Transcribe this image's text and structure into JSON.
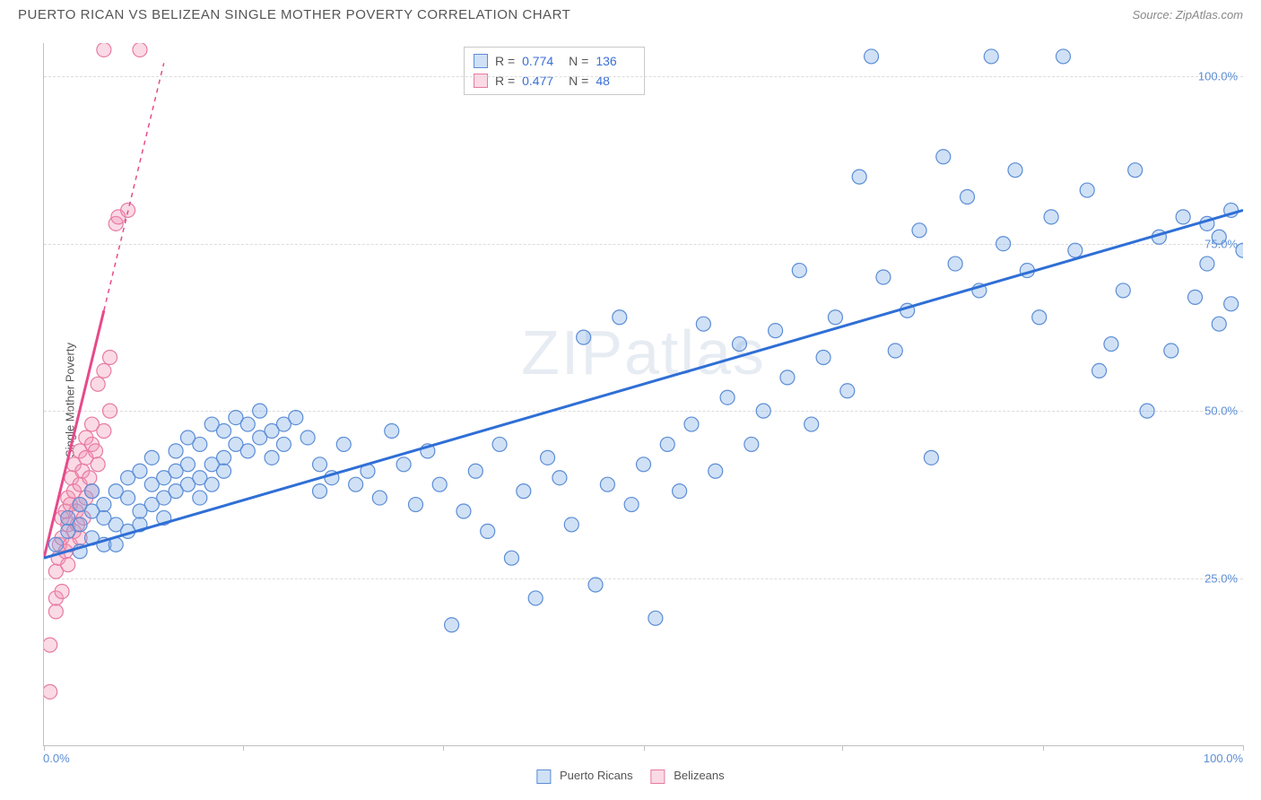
{
  "header": {
    "title": "PUERTO RICAN VS BELIZEAN SINGLE MOTHER POVERTY CORRELATION CHART",
    "source": "Source: ZipAtlas.com"
  },
  "chart": {
    "type": "scatter",
    "ylabel": "Single Mother Poverty",
    "watermark": "ZIPatlas",
    "xlim": [
      0,
      100
    ],
    "ylim": [
      0,
      105
    ],
    "yticks": [
      25,
      50,
      75,
      100
    ],
    "ytick_labels": [
      "25.0%",
      "50.0%",
      "75.0%",
      "100.0%"
    ],
    "xtick_positions": [
      0,
      16.6,
      33.3,
      50,
      66.6,
      83.3,
      100
    ],
    "xaxis_left_label": "0.0%",
    "xaxis_right_label": "100.0%",
    "background_color": "#ffffff",
    "grid_color": "#dcdcdc",
    "marker_radius": 8,
    "marker_stroke_width": 1.2,
    "series": {
      "puerto_ricans": {
        "label": "Puerto Ricans",
        "fill": "rgba(120,170,230,0.35)",
        "stroke": "#5b8dd6",
        "R": "0.774",
        "N": "136",
        "trend": {
          "x1": 0,
          "y1": 28,
          "x2": 100,
          "y2": 80,
          "dash_after_x": 100,
          "dash_end_x": 100,
          "dash_end_y": 80,
          "color": "#2f6fd6",
          "width": 3
        },
        "points": [
          [
            1,
            30
          ],
          [
            2,
            32
          ],
          [
            2,
            34
          ],
          [
            3,
            29
          ],
          [
            3,
            33
          ],
          [
            3,
            36
          ],
          [
            4,
            31
          ],
          [
            4,
            35
          ],
          [
            4,
            38
          ],
          [
            5,
            30
          ],
          [
            5,
            36
          ],
          [
            5,
            34
          ],
          [
            6,
            33
          ],
          [
            6,
            30
          ],
          [
            6,
            38
          ],
          [
            7,
            32
          ],
          [
            7,
            40
          ],
          [
            7,
            37
          ],
          [
            8,
            35
          ],
          [
            8,
            33
          ],
          [
            8,
            41
          ],
          [
            9,
            36
          ],
          [
            9,
            39
          ],
          [
            9,
            43
          ],
          [
            10,
            37
          ],
          [
            10,
            34
          ],
          [
            10,
            40
          ],
          [
            11,
            41
          ],
          [
            11,
            38
          ],
          [
            11,
            44
          ],
          [
            12,
            39
          ],
          [
            12,
            42
          ],
          [
            12,
            46
          ],
          [
            13,
            40
          ],
          [
            13,
            37
          ],
          [
            13,
            45
          ],
          [
            14,
            42
          ],
          [
            14,
            48
          ],
          [
            14,
            39
          ],
          [
            15,
            43
          ],
          [
            15,
            47
          ],
          [
            15,
            41
          ],
          [
            16,
            45
          ],
          [
            16,
            49
          ],
          [
            17,
            44
          ],
          [
            17,
            48
          ],
          [
            18,
            46
          ],
          [
            18,
            50
          ],
          [
            19,
            47
          ],
          [
            19,
            43
          ],
          [
            20,
            48
          ],
          [
            20,
            45
          ],
          [
            21,
            49
          ],
          [
            22,
            46
          ],
          [
            23,
            38
          ],
          [
            23,
            42
          ],
          [
            24,
            40
          ],
          [
            25,
            45
          ],
          [
            26,
            39
          ],
          [
            27,
            41
          ],
          [
            28,
            37
          ],
          [
            29,
            47
          ],
          [
            30,
            42
          ],
          [
            31,
            36
          ],
          [
            32,
            44
          ],
          [
            33,
            39
          ],
          [
            34,
            18
          ],
          [
            35,
            35
          ],
          [
            36,
            41
          ],
          [
            37,
            32
          ],
          [
            38,
            45
          ],
          [
            39,
            28
          ],
          [
            40,
            38
          ],
          [
            41,
            22
          ],
          [
            42,
            43
          ],
          [
            43,
            40
          ],
          [
            44,
            33
          ],
          [
            45,
            61
          ],
          [
            46,
            24
          ],
          [
            47,
            39
          ],
          [
            48,
            64
          ],
          [
            49,
            36
          ],
          [
            50,
            42
          ],
          [
            51,
            19
          ],
          [
            52,
            45
          ],
          [
            53,
            38
          ],
          [
            54,
            48
          ],
          [
            55,
            63
          ],
          [
            56,
            41
          ],
          [
            57,
            52
          ],
          [
            58,
            60
          ],
          [
            59,
            45
          ],
          [
            60,
            50
          ],
          [
            61,
            62
          ],
          [
            62,
            55
          ],
          [
            63,
            71
          ],
          [
            64,
            48
          ],
          [
            65,
            58
          ],
          [
            66,
            64
          ],
          [
            67,
            53
          ],
          [
            68,
            85
          ],
          [
            69,
            103
          ],
          [
            70,
            70
          ],
          [
            71,
            59
          ],
          [
            72,
            65
          ],
          [
            73,
            77
          ],
          [
            74,
            43
          ],
          [
            75,
            88
          ],
          [
            76,
            72
          ],
          [
            77,
            82
          ],
          [
            78,
            68
          ],
          [
            79,
            103
          ],
          [
            80,
            75
          ],
          [
            81,
            86
          ],
          [
            82,
            71
          ],
          [
            83,
            64
          ],
          [
            84,
            79
          ],
          [
            85,
            103
          ],
          [
            86,
            74
          ],
          [
            87,
            83
          ],
          [
            88,
            56
          ],
          [
            89,
            60
          ],
          [
            90,
            68
          ],
          [
            91,
            86
          ],
          [
            92,
            50
          ],
          [
            93,
            76
          ],
          [
            94,
            59
          ],
          [
            95,
            79
          ],
          [
            96,
            67
          ],
          [
            97,
            72
          ],
          [
            97,
            78
          ],
          [
            98,
            63
          ],
          [
            98,
            76
          ],
          [
            99,
            80
          ],
          [
            99,
            66
          ],
          [
            100,
            74
          ]
        ]
      },
      "belizeans": {
        "label": "Belizeans",
        "fill": "rgba(240,150,180,0.35)",
        "stroke": "#e87aa2",
        "R": "0.477",
        "N": "48",
        "trend": {
          "x1": 0,
          "y1": 28,
          "x2": 5,
          "y2": 65,
          "dash_after_x": 5,
          "dash_end_x": 10,
          "dash_end_y": 102,
          "color": "#e64a8a",
          "width": 3
        },
        "points": [
          [
            0.5,
            8
          ],
          [
            0.5,
            15
          ],
          [
            1,
            20
          ],
          [
            1,
            22
          ],
          [
            1,
            26
          ],
          [
            1.2,
            28
          ],
          [
            1.3,
            30
          ],
          [
            1.5,
            23
          ],
          [
            1.5,
            31
          ],
          [
            1.5,
            34
          ],
          [
            1.8,
            29
          ],
          [
            1.8,
            35
          ],
          [
            2,
            27
          ],
          [
            2,
            33
          ],
          [
            2,
            37
          ],
          [
            2.2,
            30
          ],
          [
            2.2,
            36
          ],
          [
            2.3,
            40
          ],
          [
            2.5,
            32
          ],
          [
            2.5,
            38
          ],
          [
            2.5,
            42
          ],
          [
            2.7,
            35
          ],
          [
            2.8,
            33
          ],
          [
            3,
            31
          ],
          [
            3,
            36
          ],
          [
            3,
            39
          ],
          [
            3,
            44
          ],
          [
            3.2,
            41
          ],
          [
            3.3,
            34
          ],
          [
            3.5,
            37
          ],
          [
            3.5,
            43
          ],
          [
            3.5,
            46
          ],
          [
            3.8,
            40
          ],
          [
            4,
            38
          ],
          [
            4,
            45
          ],
          [
            4,
            48
          ],
          [
            4.3,
            44
          ],
          [
            4.5,
            42
          ],
          [
            4.5,
            54
          ],
          [
            5,
            47
          ],
          [
            5,
            56
          ],
          [
            5.5,
            50
          ],
          [
            5.5,
            58
          ],
          [
            6,
            78
          ],
          [
            6.2,
            79
          ],
          [
            7,
            80
          ],
          [
            5,
            104
          ],
          [
            8,
            104
          ]
        ]
      }
    }
  },
  "legend_bottom": {
    "items": [
      {
        "label": "Puerto Ricans",
        "fill": "rgba(120,170,230,0.35)",
        "stroke": "#5b8dd6"
      },
      {
        "label": "Belizeans",
        "fill": "rgba(240,150,180,0.35)",
        "stroke": "#e87aa2"
      }
    ]
  }
}
